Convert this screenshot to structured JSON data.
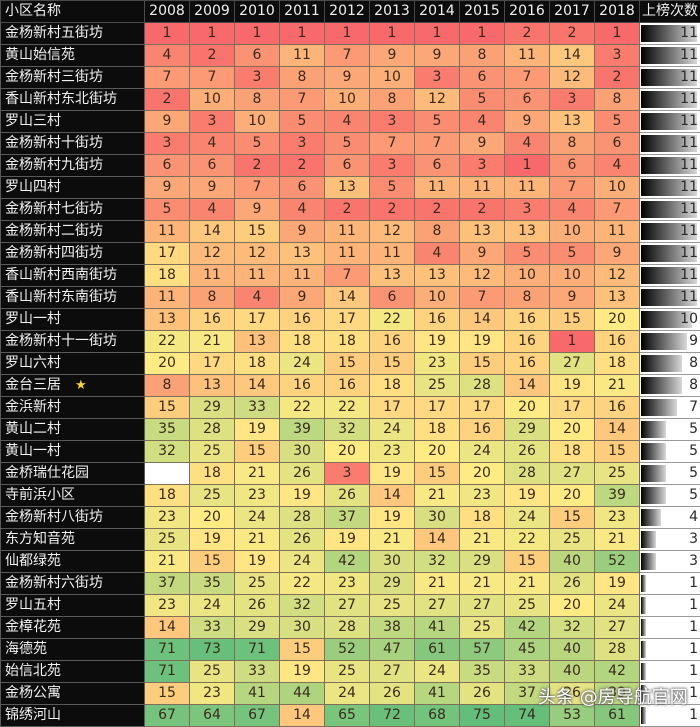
{
  "chart_data": {
    "type": "heatmap",
    "title": "",
    "xlabel": "",
    "ylabel": "",
    "columns_header": "小区名称",
    "count_header": "上榜次数",
    "years": [
      "2008",
      "2009",
      "2010",
      "2011",
      "2012",
      "2013",
      "2014",
      "2015",
      "2016",
      "2017",
      "2018"
    ],
    "color_scale": {
      "low": "#f8696b",
      "mid": "#ffeb84",
      "high": "#63be7b",
      "min": 1,
      "mid_value": 20,
      "max": 75
    },
    "rows": [
      {
        "name": "金杨新村五街坊",
        "values": [
          1,
          1,
          1,
          1,
          1,
          1,
          1,
          1,
          2,
          2,
          1
        ],
        "count": 11
      },
      {
        "name": "黄山始信苑",
        "values": [
          4,
          2,
          6,
          11,
          7,
          9,
          9,
          8,
          11,
          14,
          3
        ],
        "count": 11
      },
      {
        "name": "金杨新村三街坊",
        "values": [
          7,
          7,
          3,
          8,
          9,
          10,
          3,
          6,
          7,
          12,
          2
        ],
        "count": 11
      },
      {
        "name": "香山新村东北街坊",
        "values": [
          2,
          10,
          8,
          7,
          10,
          8,
          12,
          5,
          6,
          3,
          8
        ],
        "count": 11
      },
      {
        "name": "罗山三村",
        "values": [
          9,
          3,
          10,
          5,
          4,
          3,
          5,
          4,
          9,
          13,
          5
        ],
        "count": 11
      },
      {
        "name": "金杨新村十街坊",
        "values": [
          3,
          4,
          5,
          3,
          5,
          7,
          7,
          9,
          4,
          8,
          6
        ],
        "count": 11
      },
      {
        "name": "金杨新村九街坊",
        "values": [
          6,
          6,
          2,
          2,
          6,
          3,
          6,
          3,
          1,
          6,
          4
        ],
        "count": 11
      },
      {
        "name": "罗山四村",
        "values": [
          9,
          9,
          7,
          6,
          13,
          5,
          11,
          11,
          11,
          7,
          10
        ],
        "count": 11
      },
      {
        "name": "金杨新村七街坊",
        "values": [
          5,
          4,
          9,
          4,
          2,
          2,
          2,
          2,
          3,
          4,
          7
        ],
        "count": 11
      },
      {
        "name": "金杨新村二街坊",
        "values": [
          11,
          14,
          15,
          9,
          11,
          12,
          8,
          13,
          13,
          10,
          11
        ],
        "count": 11
      },
      {
        "name": "金杨新村四街坊",
        "values": [
          17,
          12,
          12,
          13,
          11,
          11,
          4,
          9,
          5,
          5,
          9
        ],
        "count": 11
      },
      {
        "name": "香山新村西南街坊",
        "values": [
          18,
          11,
          11,
          11,
          7,
          13,
          13,
          12,
          10,
          10,
          12
        ],
        "count": 11
      },
      {
        "name": "香山新村东南街坊",
        "values": [
          11,
          8,
          4,
          9,
          14,
          6,
          10,
          7,
          8,
          9,
          13
        ],
        "count": 11
      },
      {
        "name": "罗山一村",
        "values": [
          13,
          16,
          17,
          16,
          17,
          22,
          16,
          14,
          16,
          15,
          20
        ],
        "count": 10
      },
      {
        "name": "金杨新村十一街坊",
        "values": [
          22,
          21,
          13,
          18,
          18,
          16,
          19,
          19,
          16,
          1,
          16
        ],
        "count": 9
      },
      {
        "name": "罗山六村",
        "values": [
          20,
          17,
          18,
          24,
          15,
          15,
          23,
          15,
          16,
          27,
          18
        ],
        "count": 8
      },
      {
        "name": "金台三居",
        "star": true,
        "values": [
          8,
          13,
          14,
          16,
          16,
          18,
          25,
          28,
          14,
          19,
          21
        ],
        "count": 8
      },
      {
        "name": "金浜新村",
        "values": [
          15,
          29,
          33,
          22,
          22,
          17,
          17,
          17,
          20,
          17,
          16
        ],
        "count": 7
      },
      {
        "name": "黄山二村",
        "values": [
          35,
          28,
          19,
          39,
          32,
          24,
          18,
          16,
          29,
          20,
          14
        ],
        "count": 5
      },
      {
        "name": "黄山一村",
        "values": [
          32,
          25,
          15,
          30,
          20,
          23,
          20,
          24,
          26,
          18,
          15
        ],
        "count": 5
      },
      {
        "name": "金桥瑞仕花园",
        "values": [
          null,
          18,
          21,
          26,
          3,
          19,
          15,
          20,
          28,
          27,
          25
        ],
        "count": 5
      },
      {
        "name": "寺前浜小区",
        "values": [
          18,
          25,
          23,
          19,
          26,
          14,
          21,
          23,
          19,
          20,
          39
        ],
        "count": 5
      },
      {
        "name": "金杨新村八街坊",
        "values": [
          23,
          20,
          24,
          28,
          37,
          19,
          30,
          18,
          24,
          15,
          23
        ],
        "count": 4
      },
      {
        "name": "东方知音苑",
        "values": [
          25,
          19,
          21,
          26,
          19,
          21,
          14,
          21,
          22,
          25,
          21
        ],
        "count": 3
      },
      {
        "name": "仙都绿苑",
        "values": [
          21,
          15,
          19,
          24,
          42,
          30,
          32,
          29,
          15,
          40,
          52
        ],
        "count": 3
      },
      {
        "name": "金杨新村六街坊",
        "values": [
          37,
          35,
          25,
          22,
          23,
          29,
          21,
          21,
          21,
          26,
          19
        ],
        "count": 1
      },
      {
        "name": "罗山五村",
        "values": [
          23,
          24,
          26,
          32,
          27,
          25,
          27,
          27,
          25,
          20,
          24
        ],
        "count": 1
      },
      {
        "name": "金樟花苑",
        "values": [
          14,
          33,
          29,
          30,
          28,
          38,
          41,
          25,
          42,
          32,
          27
        ],
        "count": 1
      },
      {
        "name": "海德苑",
        "values": [
          71,
          73,
          71,
          15,
          52,
          47,
          61,
          57,
          45,
          40,
          28
        ],
        "count": 1
      },
      {
        "name": "始信北苑",
        "values": [
          71,
          25,
          33,
          19,
          25,
          27,
          24,
          35,
          33,
          40,
          42
        ],
        "count": 1
      },
      {
        "name": "金杨公寓",
        "values": [
          15,
          23,
          41,
          44,
          24,
          26,
          41,
          26,
          37,
          26,
          39
        ],
        "count": 1
      },
      {
        "name": "锦绣河山",
        "values": [
          67,
          64,
          67,
          14,
          65,
          72,
          68,
          75,
          74,
          53,
          61
        ],
        "count": 1
      }
    ],
    "count_max": 11,
    "legend": "none",
    "grid": true
  },
  "star_glyph": "★",
  "watermark": "头条 @房导航官网"
}
